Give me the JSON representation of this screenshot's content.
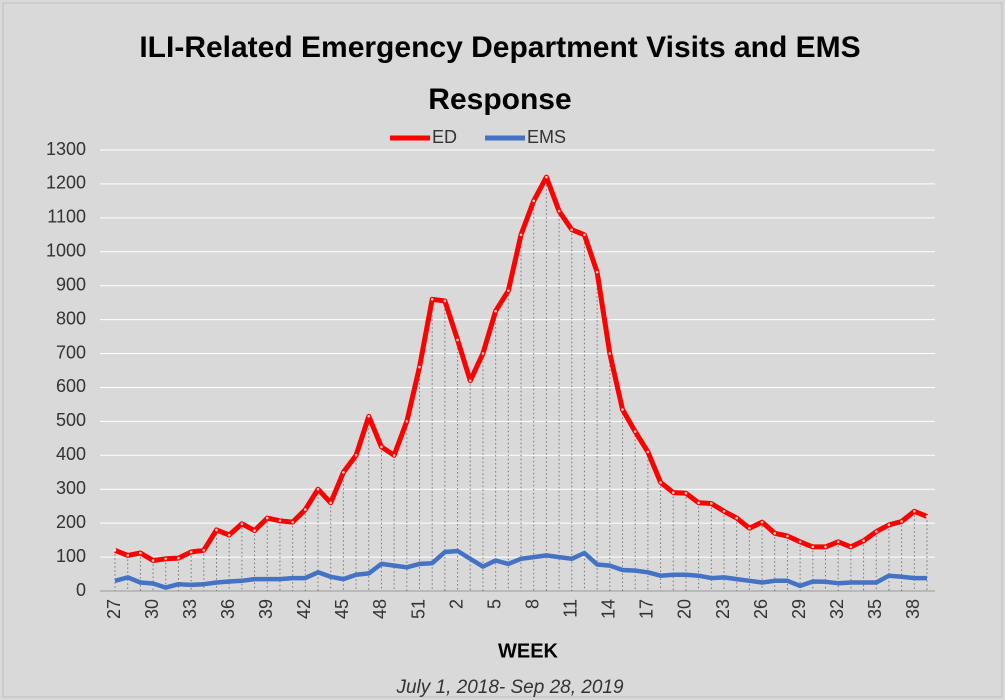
{
  "chart_data": {
    "type": "line",
    "title": "ILI-Related Emergency Department Visits and EMS Response",
    "x_label": "WEEK",
    "subtitle": "July 1, 2018- Sep 28, 2019",
    "categories": [
      "27",
      null,
      null,
      "30",
      null,
      null,
      "33",
      null,
      null,
      "36",
      null,
      null,
      "39",
      null,
      null,
      "42",
      null,
      null,
      "45",
      null,
      null,
      "48",
      null,
      null,
      "51",
      null,
      null,
      "2",
      null,
      null,
      "5",
      null,
      null,
      "8",
      null,
      null,
      "11",
      null,
      null,
      "14",
      null,
      null,
      "17",
      null,
      null,
      "20",
      null,
      null,
      "23",
      null,
      null,
      "26",
      null,
      null,
      "29",
      null,
      null,
      "32",
      null,
      null,
      "35",
      null,
      null,
      "38",
      null
    ],
    "series": [
      {
        "name": "ED",
        "color": "#ff0000",
        "values": [
          120,
          105,
          112,
          90,
          95,
          97,
          115,
          120,
          180,
          165,
          198,
          178,
          215,
          207,
          203,
          240,
          300,
          260,
          350,
          400,
          515,
          425,
          400,
          500,
          660,
          860,
          855,
          740,
          620,
          700,
          825,
          885,
          1050,
          1150,
          1220,
          1120,
          1065,
          1050,
          940,
          700,
          535,
          470,
          410,
          320,
          290,
          288,
          260,
          258,
          235,
          215,
          185,
          203,
          170,
          162,
          145,
          130,
          130,
          145,
          130,
          148,
          175,
          195,
          205,
          235,
          220
        ]
      },
      {
        "name": "EMS",
        "color": "#4472c4",
        "values": [
          30,
          40,
          25,
          22,
          10,
          20,
          18,
          20,
          25,
          28,
          30,
          35,
          35,
          35,
          38,
          38,
          55,
          42,
          35,
          48,
          52,
          80,
          75,
          70,
          80,
          82,
          115,
          118,
          95,
          72,
          90,
          80,
          95,
          100,
          105,
          100,
          95,
          112,
          78,
          75,
          62,
          60,
          55,
          45,
          48,
          48,
          45,
          38,
          40,
          35,
          30,
          25,
          30,
          30,
          15,
          28,
          27,
          23,
          25,
          25,
          25,
          45,
          42,
          38,
          38
        ]
      }
    ],
    "ylim": [
      0,
      1300
    ],
    "yticks": [
      0,
      100,
      200,
      300,
      400,
      500,
      600,
      700,
      800,
      900,
      1000,
      1100,
      1200,
      1300
    ],
    "grid": true,
    "drop_lines": true,
    "legend": "top"
  }
}
